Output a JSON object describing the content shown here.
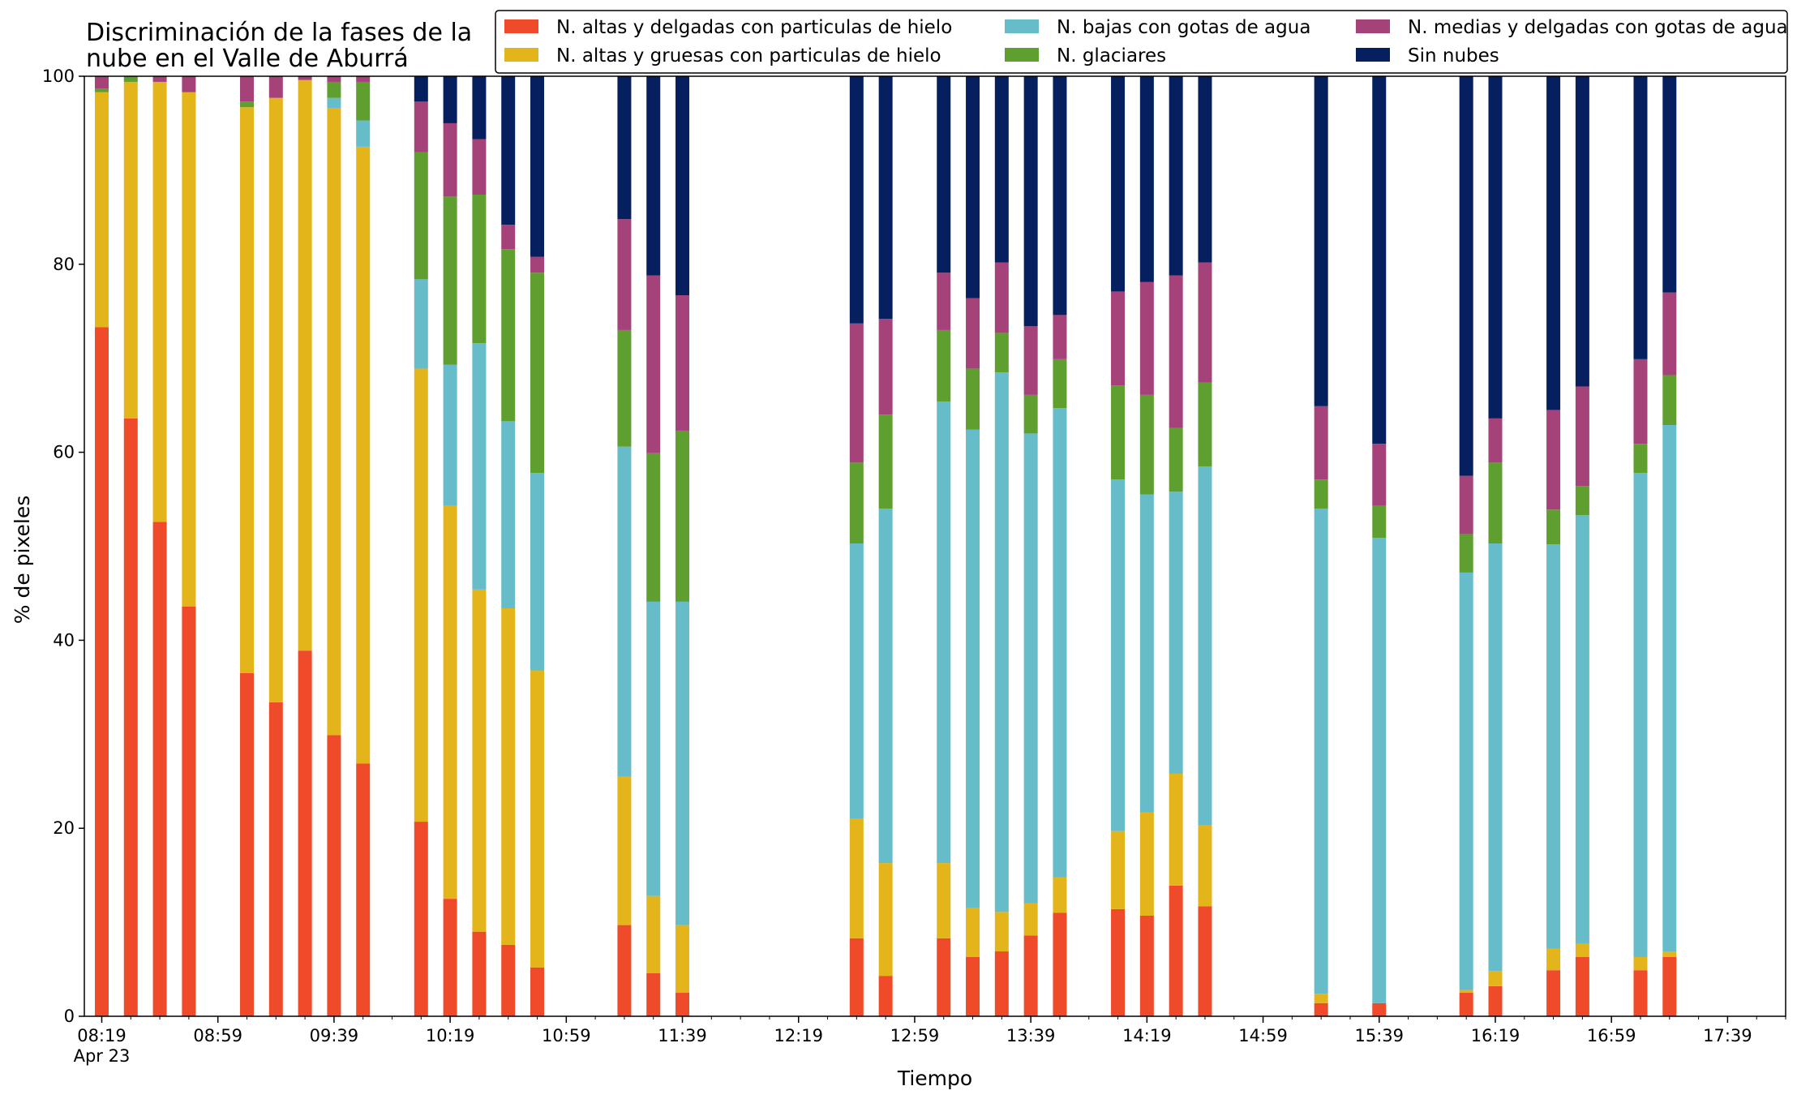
{
  "chart_data": {
    "type": "bar",
    "stacked": true,
    "title": [
      "Discriminación de la fases de la",
      "nube en el Valle de Aburrá"
    ],
    "xlabel": "Tiempo",
    "ylabel": "% de pixeles",
    "ylim": [
      0,
      100
    ],
    "yticks": [
      0,
      20,
      40,
      60,
      80,
      100
    ],
    "x_unit": "minutes after 08:19 (Apr 23)",
    "x_range": [
      -6,
      580
    ],
    "x_major_ticks": [
      0,
      40,
      80,
      120,
      160,
      200,
      240,
      280,
      320,
      360,
      400,
      440,
      480,
      520,
      560
    ],
    "x_minor_step": 10,
    "x_tick_labels": [
      "08:19",
      "08:59",
      "09:39",
      "10:19",
      "10:59",
      "11:39",
      "12:19",
      "12:59",
      "13:39",
      "14:19",
      "14:59",
      "15:39",
      "16:19",
      "16:59",
      "17:39"
    ],
    "x_tick_sublabel": "Apr 23",
    "legend_position": "top-right",
    "legend_columns": 3,
    "series": [
      {
        "name": "N. altas y delgadas con particulas de hielo",
        "color": "#ef4b2a"
      },
      {
        "name": "N. altas y gruesas con particulas de hielo",
        "color": "#e3b51b"
      },
      {
        "name": "N. bajas con gotas de agua",
        "color": "#67bcc9"
      },
      {
        "name": "N. glaciares",
        "color": "#5f9f2f"
      },
      {
        "name": "N. medias y delgadas con gotas de agua",
        "color": "#a5427a"
      },
      {
        "name": "Sin nubes",
        "color": "#06205f"
      }
    ],
    "legend_order": [
      0,
      2,
      4,
      1,
      3,
      5
    ],
    "bars": [
      {
        "x": 0,
        "values": [
          73.3,
          25.0,
          0.0,
          0.4,
          1.3,
          0.0
        ]
      },
      {
        "x": 10,
        "values": [
          63.6,
          35.8,
          0.0,
          0.6,
          0.0,
          0.0
        ]
      },
      {
        "x": 20,
        "values": [
          52.6,
          46.8,
          0.0,
          0.0,
          0.6,
          0.0
        ]
      },
      {
        "x": 30,
        "values": [
          43.6,
          54.7,
          0.0,
          0.0,
          1.7,
          0.0
        ]
      },
      {
        "x": 50,
        "values": [
          36.5,
          60.2,
          0.0,
          0.6,
          2.7,
          0.0
        ]
      },
      {
        "x": 60,
        "values": [
          33.4,
          64.3,
          0.0,
          0.0,
          2.3,
          0.0
        ]
      },
      {
        "x": 70,
        "values": [
          38.9,
          60.7,
          0.0,
          0.0,
          0.4,
          0.0
        ]
      },
      {
        "x": 80,
        "values": [
          29.9,
          66.7,
          1.1,
          1.7,
          0.6,
          0.0
        ]
      },
      {
        "x": 90,
        "values": [
          26.9,
          65.6,
          2.8,
          4.1,
          0.6,
          0.0
        ]
      },
      {
        "x": 110,
        "values": [
          20.7,
          48.2,
          9.5,
          13.5,
          5.4,
          2.7
        ]
      },
      {
        "x": 120,
        "values": [
          12.5,
          41.8,
          15.0,
          17.9,
          7.8,
          5.0
        ]
      },
      {
        "x": 130,
        "values": [
          9.0,
          36.4,
          26.2,
          15.8,
          5.9,
          6.7
        ]
      },
      {
        "x": 140,
        "values": [
          7.6,
          35.8,
          19.9,
          18.3,
          2.6,
          15.8
        ]
      },
      {
        "x": 150,
        "values": [
          5.2,
          31.6,
          21.0,
          21.3,
          1.7,
          19.2
        ]
      },
      {
        "x": 180,
        "values": [
          9.7,
          15.8,
          35.1,
          12.4,
          11.8,
          15.2
        ]
      },
      {
        "x": 190,
        "values": [
          4.6,
          8.2,
          31.3,
          15.8,
          18.9,
          21.2
        ]
      },
      {
        "x": 200,
        "values": [
          2.5,
          7.2,
          34.4,
          18.2,
          14.4,
          23.3
        ]
      },
      {
        "x": 260,
        "values": [
          8.3,
          12.7,
          29.3,
          8.6,
          14.8,
          26.3
        ]
      },
      {
        "x": 270,
        "values": [
          4.3,
          12.0,
          37.7,
          10.0,
          10.2,
          25.8
        ]
      },
      {
        "x": 290,
        "values": [
          8.3,
          8.0,
          49.1,
          7.6,
          6.1,
          20.9
        ]
      },
      {
        "x": 300,
        "values": [
          6.3,
          5.2,
          50.9,
          6.5,
          7.5,
          23.6
        ]
      },
      {
        "x": 310,
        "values": [
          6.9,
          4.2,
          57.4,
          4.2,
          7.5,
          19.8
        ]
      },
      {
        "x": 320,
        "values": [
          8.6,
          3.4,
          50.0,
          4.1,
          7.3,
          26.6
        ]
      },
      {
        "x": 330,
        "values": [
          11.0,
          3.8,
          49.9,
          5.2,
          4.7,
          25.4
        ]
      },
      {
        "x": 350,
        "values": [
          11.4,
          8.3,
          37.4,
          10.0,
          10.0,
          22.9
        ]
      },
      {
        "x": 360,
        "values": [
          10.7,
          11.0,
          33.8,
          10.6,
          12.0,
          21.9
        ]
      },
      {
        "x": 370,
        "values": [
          13.9,
          11.9,
          30.0,
          6.8,
          16.2,
          21.2
        ]
      },
      {
        "x": 380,
        "values": [
          11.7,
          8.6,
          38.2,
          8.9,
          12.8,
          19.8
        ]
      },
      {
        "x": 420,
        "values": [
          1.4,
          1.0,
          51.6,
          3.1,
          7.8,
          35.1
        ]
      },
      {
        "x": 440,
        "values": [
          1.4,
          0.0,
          49.5,
          3.4,
          6.6,
          39.1
        ]
      },
      {
        "x": 470,
        "values": [
          2.5,
          0.3,
          44.4,
          4.1,
          6.2,
          42.5
        ]
      },
      {
        "x": 480,
        "values": [
          3.2,
          1.6,
          45.5,
          8.6,
          4.7,
          36.4
        ]
      },
      {
        "x": 500,
        "values": [
          4.9,
          2.3,
          43.0,
          3.7,
          10.6,
          35.5
        ]
      },
      {
        "x": 510,
        "values": [
          6.3,
          1.4,
          45.6,
          3.1,
          10.6,
          33.0
        ]
      },
      {
        "x": 530,
        "values": [
          4.9,
          1.4,
          51.5,
          3.1,
          9.0,
          30.1
        ]
      },
      {
        "x": 540,
        "values": [
          6.3,
          0.6,
          56.0,
          5.3,
          8.8,
          23.0
        ]
      }
    ]
  }
}
